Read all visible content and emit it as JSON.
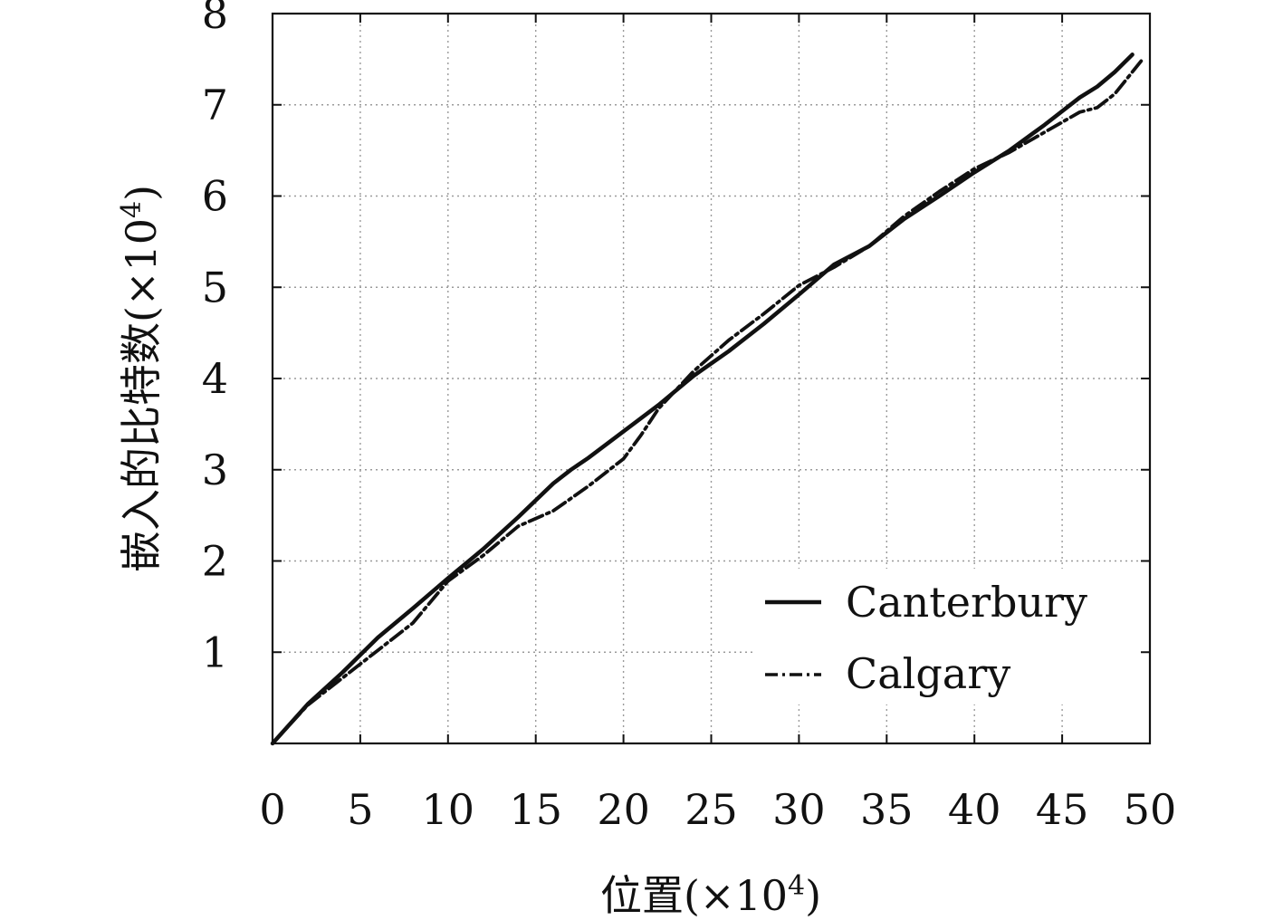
{
  "chart_data": {
    "type": "line",
    "xlabel_main": "位置",
    "xlabel_unit": "(×10",
    "xlabel_exp": "4",
    "xlabel_end": ")",
    "ylabel_main": "嵌入的比特数",
    "ylabel_unit": "(×10",
    "ylabel_exp": "4",
    "ylabel_end": ")",
    "xlim": [
      0,
      50
    ],
    "ylim": [
      0,
      8
    ],
    "xticks": [
      0,
      5,
      10,
      15,
      20,
      25,
      30,
      35,
      40,
      45,
      50
    ],
    "yticks": [
      1,
      2,
      3,
      4,
      5,
      6,
      7,
      8
    ],
    "grid": true,
    "legend_position": "bottom-right",
    "series": [
      {
        "name": "Canterbury",
        "style": "solid",
        "color": "#111111",
        "x": [
          0,
          2,
          4,
          6,
          8,
          10,
          12,
          14,
          16,
          17,
          18,
          20,
          22,
          24,
          26,
          28,
          30,
          32,
          34,
          36,
          38,
          40,
          42,
          44,
          46,
          47,
          48,
          49
        ],
        "y": [
          0,
          0.43,
          0.78,
          1.16,
          1.48,
          1.81,
          2.13,
          2.48,
          2.85,
          3.0,
          3.13,
          3.42,
          3.71,
          4.03,
          4.3,
          4.6,
          4.92,
          5.25,
          5.45,
          5.75,
          6.0,
          6.26,
          6.5,
          6.78,
          7.08,
          7.2,
          7.36,
          7.55
        ]
      },
      {
        "name": "Calgary",
        "style": "dash-dot",
        "color": "#111111",
        "x": [
          0,
          2,
          4,
          6,
          8,
          10,
          12,
          14,
          16,
          18,
          20,
          21,
          22,
          24,
          26,
          28,
          30,
          32,
          34,
          36,
          38,
          40,
          42,
          44,
          46,
          47,
          48,
          49.5
        ],
        "y": [
          0,
          0.42,
          0.72,
          1.02,
          1.32,
          1.78,
          2.06,
          2.38,
          2.55,
          2.82,
          3.12,
          3.38,
          3.67,
          4.08,
          4.42,
          4.71,
          5.02,
          5.22,
          5.45,
          5.78,
          6.05,
          6.3,
          6.48,
          6.7,
          6.92,
          6.97,
          7.12,
          7.48
        ]
      }
    ]
  }
}
